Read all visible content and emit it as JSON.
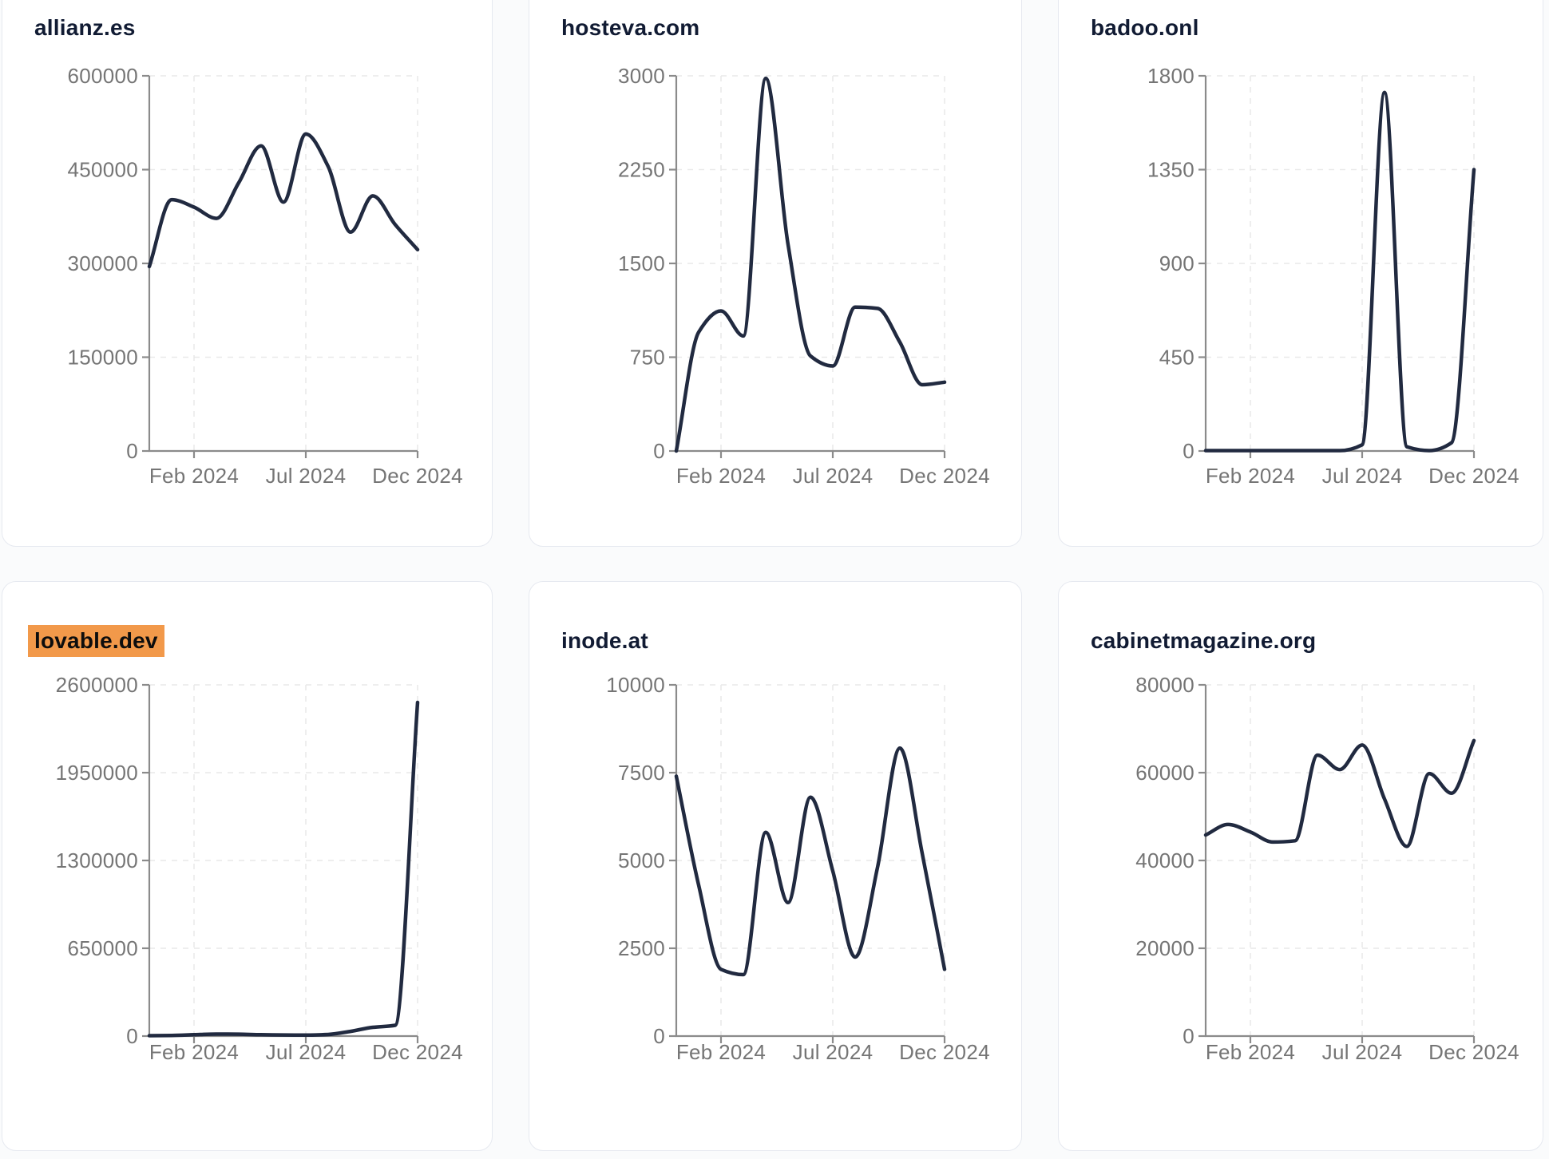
{
  "page": {
    "background": "#fafbfc"
  },
  "style": {
    "line_color": "#212a40",
    "title_color": "#111b33",
    "highlight_color": "#f2994a",
    "axis_color": "#8b8b8b",
    "tick_label_color": "#757575",
    "grid_color": "#e9e9e9",
    "card_background": "#ffffff",
    "card_border": "#e6e9f0"
  },
  "chart_data": [
    {
      "type": "line",
      "title": "allianz.es",
      "highlighted": false,
      "x": [
        "Dec 2023",
        "Jan 2024",
        "Feb 2024",
        "Mar 2024",
        "Apr 2024",
        "May 2024",
        "Jun 2024",
        "Jul 2024",
        "Aug 2024",
        "Sep 2024",
        "Oct 2024",
        "Nov 2024",
        "Dec 2024"
      ],
      "values": [
        295000,
        402000,
        390000,
        372000,
        429000,
        488000,
        398000,
        507000,
        455000,
        350000,
        408000,
        362000,
        322000
      ],
      "ylim": [
        0,
        600000
      ],
      "yticks": [
        0,
        150000,
        300000,
        450000,
        600000
      ],
      "xticks": [
        {
          "label": "Feb 2024",
          "index": 2
        },
        {
          "label": "Jul 2024",
          "index": 7
        },
        {
          "label": "Dec 2024",
          "index": 12
        }
      ],
      "grid": "dashed",
      "legend": null
    },
    {
      "type": "line",
      "title": "hosteva.com",
      "highlighted": false,
      "x": [
        "Dec 2023",
        "Jan 2024",
        "Feb 2024",
        "Mar 2024",
        "Apr 2024",
        "May 2024",
        "Jun 2024",
        "Jul 2024",
        "Aug 2024",
        "Sep 2024",
        "Oct 2024",
        "Nov 2024",
        "Dec 2024"
      ],
      "values": [
        0,
        950,
        1120,
        920,
        2980,
        1650,
        760,
        680,
        1150,
        1140,
        870,
        530,
        550
      ],
      "ylim": [
        0,
        3000
      ],
      "yticks": [
        0,
        750,
        1500,
        2250,
        3000
      ],
      "xticks": [
        {
          "label": "Feb 2024",
          "index": 2
        },
        {
          "label": "Jul 2024",
          "index": 7
        },
        {
          "label": "Dec 2024",
          "index": 12
        }
      ],
      "grid": "dashed",
      "legend": null
    },
    {
      "type": "line",
      "title": "badoo.onl",
      "highlighted": false,
      "x": [
        "Dec 2023",
        "Jan 2024",
        "Feb 2024",
        "Mar 2024",
        "Apr 2024",
        "May 2024",
        "Jun 2024",
        "Jul 2024",
        "Aug 2024",
        "Sep 2024",
        "Oct 2024",
        "Nov 2024",
        "Dec 2024"
      ],
      "values": [
        2,
        2,
        2,
        2,
        2,
        2,
        2,
        30,
        1720,
        20,
        2,
        40,
        1350
      ],
      "ylim": [
        0,
        1800
      ],
      "yticks": [
        0,
        450,
        900,
        1350,
        1800
      ],
      "xticks": [
        {
          "label": "Feb 2024",
          "index": 2
        },
        {
          "label": "Jul 2024",
          "index": 7
        },
        {
          "label": "Dec 2024",
          "index": 12
        }
      ],
      "grid": "dashed",
      "legend": null
    },
    {
      "type": "line",
      "title": "lovable.dev",
      "highlighted": true,
      "x": [
        "Dec 2023",
        "Jan 2024",
        "Feb 2024",
        "Mar 2024",
        "Apr 2024",
        "May 2024",
        "Jun 2024",
        "Jul 2024",
        "Aug 2024",
        "Sep 2024",
        "Oct 2024",
        "Nov 2024",
        "Dec 2024"
      ],
      "values": [
        3000,
        5000,
        10000,
        15000,
        14000,
        10000,
        8000,
        7000,
        12000,
        35000,
        65000,
        80000,
        2470000
      ],
      "ylim": [
        0,
        2600000
      ],
      "yticks": [
        0,
        650000,
        1300000,
        1950000,
        2600000
      ],
      "xticks": [
        {
          "label": "Feb 2024",
          "index": 2
        },
        {
          "label": "Jul 2024",
          "index": 7
        },
        {
          "label": "Dec 2024",
          "index": 12
        }
      ],
      "grid": "dashed",
      "legend": null
    },
    {
      "type": "line",
      "title": "inode.at",
      "highlighted": false,
      "x": [
        "Dec 2023",
        "Jan 2024",
        "Feb 2024",
        "Mar 2024",
        "Apr 2024",
        "May 2024",
        "Jun 2024",
        "Jul 2024",
        "Aug 2024",
        "Sep 2024",
        "Oct 2024",
        "Nov 2024",
        "Dec 2024"
      ],
      "values": [
        7400,
        4300,
        1900,
        1750,
        5800,
        3800,
        6800,
        4700,
        2250,
        4800,
        8200,
        5200,
        1900
      ],
      "ylim": [
        0,
        10000
      ],
      "yticks": [
        0,
        2500,
        5000,
        7500,
        10000
      ],
      "xticks": [
        {
          "label": "Feb 2024",
          "index": 2
        },
        {
          "label": "Jul 2024",
          "index": 7
        },
        {
          "label": "Dec 2024",
          "index": 12
        }
      ],
      "grid": "dashed",
      "legend": null
    },
    {
      "type": "line",
      "title": "cabinetmagazine.org",
      "highlighted": false,
      "x": [
        "Dec 2023",
        "Jan 2024",
        "Feb 2024",
        "Mar 2024",
        "Apr 2024",
        "May 2024",
        "Jun 2024",
        "Jul 2024",
        "Aug 2024",
        "Sep 2024",
        "Oct 2024",
        "Nov 2024",
        "Dec 2024"
      ],
      "values": [
        45800,
        48200,
        46500,
        44200,
        44500,
        64000,
        60700,
        66300,
        54000,
        43200,
        59800,
        55300,
        67300
      ],
      "ylim": [
        0,
        80000
      ],
      "yticks": [
        0,
        20000,
        40000,
        60000,
        80000
      ],
      "xticks": [
        {
          "label": "Feb 2024",
          "index": 2
        },
        {
          "label": "Jul 2024",
          "index": 7
        },
        {
          "label": "Dec 2024",
          "index": 12
        }
      ],
      "grid": "dashed",
      "legend": null
    }
  ]
}
